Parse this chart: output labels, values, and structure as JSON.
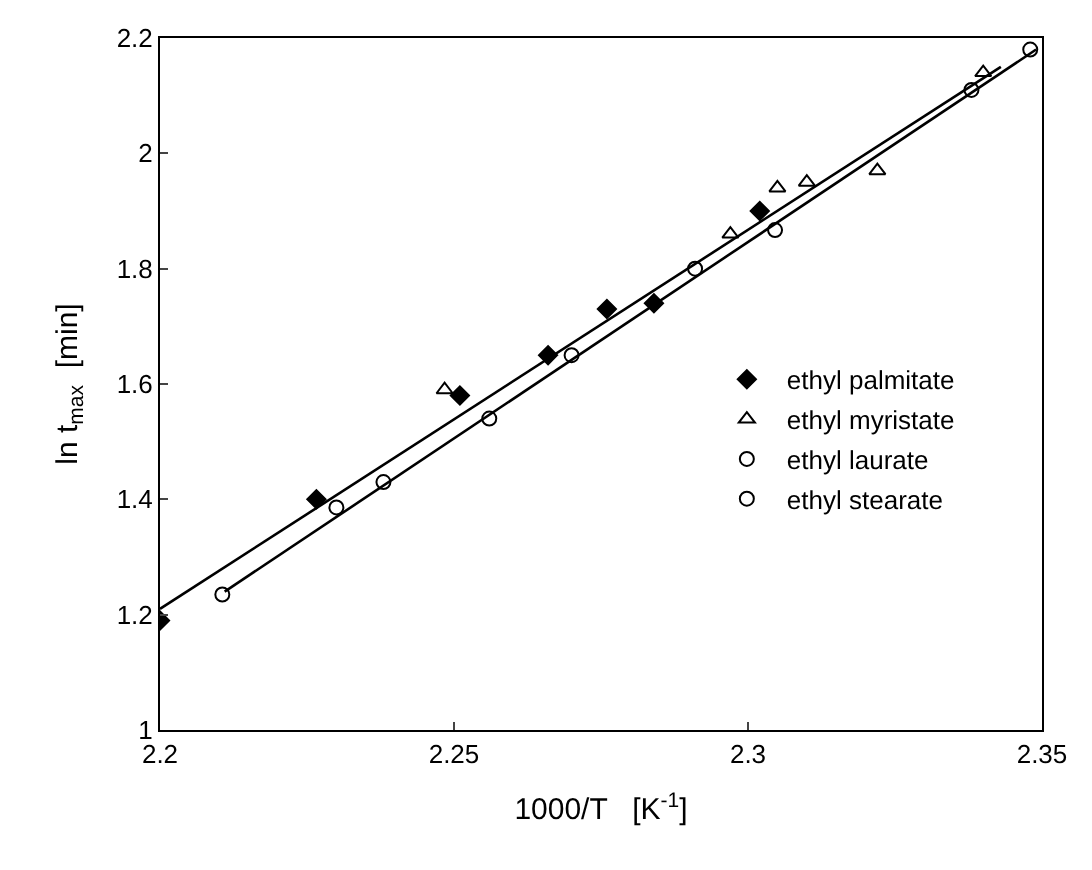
{
  "chart_data": {
    "type": "scatter",
    "xlabel": "1000/T   [K$^{-1}$]",
    "ylabel": "ln t$_{max}$  [min]",
    "xlim": [
      2.2,
      2.35
    ],
    "xticks": [
      2.2,
      2.25,
      2.3,
      2.35
    ],
    "ylim": [
      1,
      2.2
    ],
    "yticks": [
      1,
      1.2,
      1.4,
      1.6,
      1.8,
      2,
      2.2
    ],
    "legend": "right",
    "series": [
      {
        "name": "ethyl palmitate",
        "color": "#000000",
        "marker": "diamond",
        "x": [
          2.2,
          2.2266,
          2.251,
          2.266,
          2.276,
          2.284,
          2.302
        ],
        "values": [
          1.19,
          1.4,
          1.58,
          1.65,
          1.73,
          1.74,
          1.9
        ]
      },
      {
        "name": "ethyl myristate",
        "color": "#000000",
        "marker": "triangle",
        "x": [
          2.2484,
          2.297,
          2.305,
          2.31,
          2.322,
          2.34
        ],
        "values": [
          1.59,
          1.86,
          1.94,
          1.95,
          1.97,
          2.14
        ]
      },
      {
        "name": "ethyl laurate",
        "color": "#000000",
        "marker": "circle",
        "x": [
          2.23,
          2.27,
          2.3046,
          2.338
        ],
        "values": [
          1.386,
          1.65,
          1.867,
          2.11
        ]
      },
      {
        "name": "ethyl stearate",
        "color": "#000000",
        "marker": "circle",
        "x": [
          2.2106,
          2.238,
          2.256,
          2.291,
          2.348
        ],
        "values": [
          1.235,
          1.43,
          1.54,
          1.8,
          2.18
        ]
      },
      {
        "type": "line",
        "color": "#000000",
        "marker": "none",
        "x": [
          2.2,
          2.343
        ],
        "values": [
          1.21,
          2.15
        ]
      },
      {
        "type": "line",
        "color": "#000000",
        "marker": "none",
        "x": [
          2.211,
          2.349
        ],
        "values": [
          1.24,
          2.18
        ]
      }
    ]
  }
}
